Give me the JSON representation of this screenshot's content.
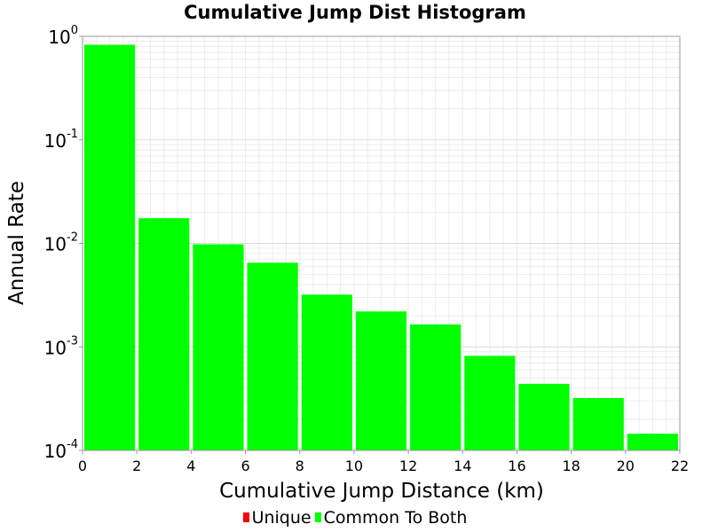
{
  "chart_data": {
    "type": "bar",
    "title": "Cumulative Jump Dist Histogram",
    "xlabel": "Cumulative Jump Distance (km)",
    "ylabel": "Annual Rate",
    "xlim": [
      0,
      22
    ],
    "ylim": [
      0.0001,
      1
    ],
    "yscale": "log",
    "x_ticks": [
      "0",
      "2",
      "4",
      "6",
      "8",
      "10",
      "12",
      "14",
      "16",
      "18",
      "20",
      "22"
    ],
    "y_ticks": [
      {
        "base": "10",
        "exp": "-4"
      },
      {
        "base": "10",
        "exp": "-3"
      },
      {
        "base": "10",
        "exp": "-2"
      },
      {
        "base": "10",
        "exp": "-1"
      },
      {
        "base": "10",
        "exp": "0"
      }
    ],
    "grid": true,
    "bar_width": 2,
    "legend_position": "bottom",
    "series": [
      {
        "name": "Unique",
        "color": "#ff0000",
        "x": [],
        "values": []
      },
      {
        "name": "Common To Both",
        "color": "#00ff00",
        "x": [
          1,
          3,
          5,
          7,
          9,
          11,
          13,
          15,
          17,
          19,
          21
        ],
        "values": [
          0.83,
          0.0175,
          0.0098,
          0.0065,
          0.0032,
          0.0022,
          0.00165,
          0.00082,
          0.00044,
          0.00032,
          0.000145
        ]
      }
    ]
  }
}
